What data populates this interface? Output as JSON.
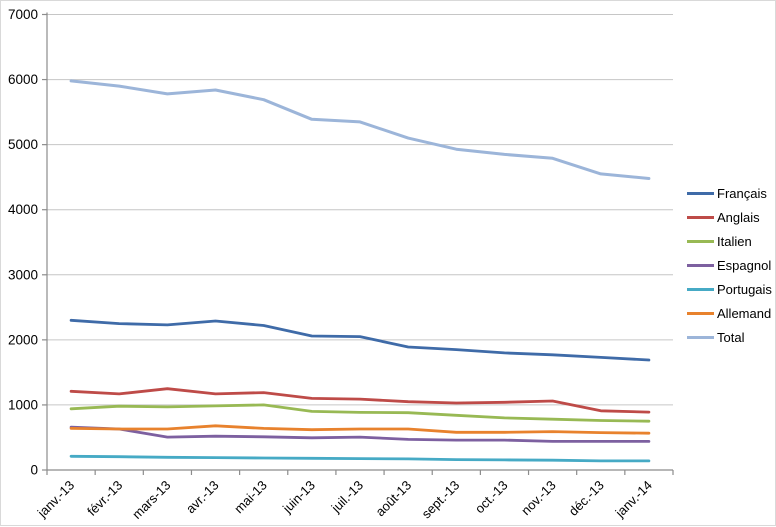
{
  "chart_data": {
    "type": "line",
    "title": "",
    "xlabel": "",
    "ylabel": "",
    "categories": [
      "janv.-13",
      "févr.-13",
      "mars-13",
      "avr.-13",
      "mai-13",
      "juin-13",
      "juil.-13",
      "août-13",
      "sept.-13",
      "oct.-13",
      "nov.-13",
      "déc.-13",
      "janv.-14"
    ],
    "series": [
      {
        "name": "Français",
        "color": "#3F6BA8",
        "width": 2.8,
        "values": [
          2300,
          2250,
          2230,
          2290,
          2220,
          2060,
          2050,
          1890,
          1850,
          1800,
          1770,
          1730,
          1690
        ]
      },
      {
        "name": "Anglais",
        "color": "#BE4B48",
        "width": 2.8,
        "values": [
          1210,
          1170,
          1250,
          1170,
          1190,
          1100,
          1090,
          1050,
          1030,
          1040,
          1060,
          910,
          890
        ]
      },
      {
        "name": "Italien",
        "color": "#98B954",
        "width": 2.8,
        "values": [
          940,
          980,
          970,
          985,
          1000,
          900,
          885,
          880,
          840,
          800,
          780,
          760,
          750
        ]
      },
      {
        "name": "Espagnol",
        "color": "#7D60A0",
        "width": 2.8,
        "values": [
          660,
          630,
          505,
          520,
          510,
          495,
          505,
          470,
          460,
          460,
          440,
          440,
          440
        ]
      },
      {
        "name": "Portugais",
        "color": "#46AAC5",
        "width": 2.8,
        "values": [
          210,
          205,
          195,
          190,
          185,
          180,
          175,
          170,
          160,
          155,
          150,
          140,
          140
        ]
      },
      {
        "name": "Allemand",
        "color": "#E8822D",
        "width": 2.8,
        "values": [
          640,
          630,
          630,
          680,
          640,
          620,
          630,
          630,
          580,
          580,
          590,
          575,
          565
        ]
      },
      {
        "name": "Total",
        "color": "#9CB5D9",
        "width": 3.0,
        "values": [
          5980,
          5900,
          5780,
          5840,
          5690,
          5390,
          5350,
          5100,
          4930,
          4850,
          4790,
          4550,
          4480
        ]
      }
    ],
    "ylim": [
      0,
      7000
    ],
    "yticks": [
      0,
      1000,
      2000,
      3000,
      4000,
      5000,
      6000,
      7000
    ],
    "grid": true,
    "legend_position": "right"
  },
  "style": {
    "grid_color": "#C6C6C6",
    "axis_color": "#8C8C8C",
    "label_color": "#000000",
    "background": "#FFFFFF"
  }
}
